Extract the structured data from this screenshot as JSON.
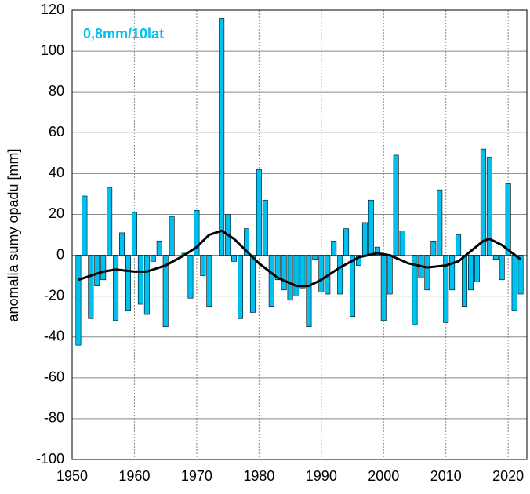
{
  "chart_data": {
    "type": "bar",
    "annotation": "0,8mm/10lat",
    "ylabel": "anomalia sumy opadu [mm]",
    "x": [
      1951,
      1952,
      1953,
      1954,
      1955,
      1956,
      1957,
      1958,
      1959,
      1960,
      1961,
      1962,
      1963,
      1964,
      1965,
      1966,
      1967,
      1968,
      1969,
      1970,
      1971,
      1972,
      1973,
      1974,
      1975,
      1976,
      1977,
      1978,
      1979,
      1980,
      1981,
      1982,
      1983,
      1984,
      1985,
      1986,
      1987,
      1988,
      1989,
      1990,
      1991,
      1992,
      1993,
      1994,
      1995,
      1996,
      1997,
      1998,
      1999,
      2000,
      2001,
      2002,
      2003,
      2004,
      2005,
      2006,
      2007,
      2008,
      2009,
      2010,
      2011,
      2012,
      2013,
      2014,
      2015,
      2016,
      2017,
      2018,
      2019,
      2020,
      2021,
      2022
    ],
    "values": [
      -44,
      29,
      -31,
      -15,
      -12,
      33,
      -32,
      11,
      -27,
      21,
      -24,
      -29,
      -3,
      7,
      -35,
      19,
      0,
      1,
      -21,
      22,
      -10,
      -25,
      0,
      116,
      20,
      -3,
      -31,
      13,
      -28,
      42,
      27,
      -25,
      -12,
      -17,
      -22,
      -20,
      -16,
      -35,
      -2,
      -18,
      -19,
      7,
      -19,
      13,
      -30,
      -5,
      16,
      27,
      4,
      -32,
      -19,
      49,
      12,
      0,
      -34,
      -11,
      -17,
      7,
      32,
      -33,
      -17,
      10,
      -25,
      -17,
      -13,
      52,
      48,
      -2,
      -12,
      35,
      -27,
      -19
    ],
    "color": "#00c0f0",
    "trend": {
      "color": "#000000",
      "x": [
        1951,
        1955,
        1957,
        1960,
        1962,
        1965,
        1968,
        1970,
        1972,
        1974,
        1976,
        1978,
        1980,
        1983,
        1986,
        1988,
        1990,
        1993,
        1996,
        1999,
        2001,
        2004,
        2007,
        2010,
        2012,
        2014,
        2016,
        2017,
        2019,
        2022
      ],
      "values": [
        -12,
        -8,
        -7,
        -8,
        -8,
        -5,
        0,
        4,
        10,
        12,
        8,
        2,
        -4,
        -11,
        -15,
        -15,
        -12,
        -6,
        -1,
        1,
        0,
        -4,
        -6,
        -5,
        -3,
        2,
        7,
        8,
        5,
        -2
      ]
    },
    "xlim": [
      1950,
      2023
    ],
    "xticks": [
      1950,
      1960,
      1970,
      1980,
      1990,
      2000,
      2010,
      2020
    ],
    "ylim": [
      -100,
      120
    ],
    "yticks": [
      -100,
      -80,
      -60,
      -40,
      -20,
      0,
      20,
      40,
      60,
      80,
      100,
      120
    ],
    "grid": true
  }
}
